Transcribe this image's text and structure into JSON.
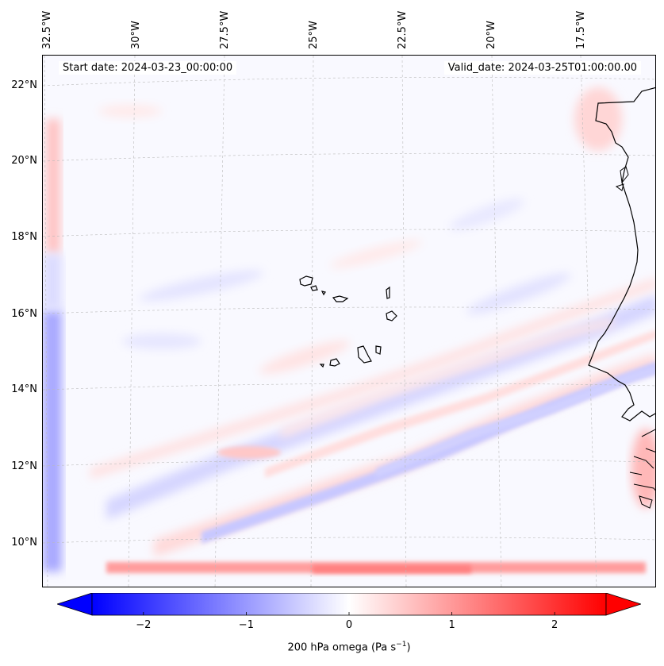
{
  "map": {
    "start_date": "Start date: 2024-03-23_00:00:00",
    "valid_date": "Valid_date: 2024-03-25T01:00:00.00",
    "lon_labels": [
      "32.5°W",
      "30°W",
      "27.5°W",
      "25°W",
      "22.5°W",
      "20°W",
      "17.5°W"
    ],
    "lat_labels": [
      "22°N",
      "20°N",
      "18°N",
      "16°N",
      "14°N",
      "12°N",
      "10°N"
    ]
  },
  "colorbar": {
    "ticks": [
      "−2",
      "−1",
      "0",
      "1",
      "2"
    ],
    "tick_values": [
      -2,
      -1,
      0,
      1,
      2
    ],
    "range": [
      -2.5,
      2.5
    ],
    "label_main": "200 hPa omega (Pa s",
    "label_sup": "−1",
    "label_end": ")",
    "colors": {
      "neg": "#0000ff",
      "mid": "#ffffff",
      "pos": "#ff0000"
    }
  }
}
